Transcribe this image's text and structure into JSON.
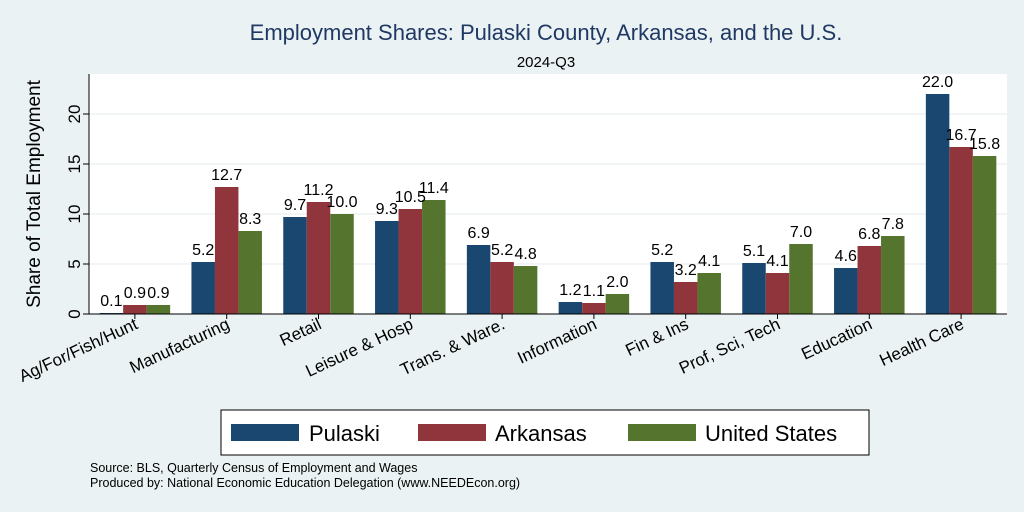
{
  "colors": {
    "background": "#eaf2f3",
    "plot_background": "#ffffff",
    "Pulaski": "#1a476f",
    "Arkansas": "#90353b",
    "United States": "#55752f"
  },
  "chart_data": {
    "type": "bar",
    "title": "Employment Shares: Pulaski County, Arkansas, and the U.S.",
    "subtitle": "2024-Q3",
    "xlabel": "",
    "ylabel": "Share of Total Employment",
    "ylim": [
      0,
      24
    ],
    "yticks": [
      "0",
      "5",
      "10",
      "15",
      "20"
    ],
    "grid": true,
    "legend_position": "bottom",
    "categories": [
      "Ag/For/Fish/Hunt",
      "Manufacturing",
      "Retail",
      "Leisure & Hosp",
      "Trans. & Ware.",
      "Information",
      "Fin & Ins",
      "Prof, Sci, Tech",
      "Education",
      "Health Care"
    ],
    "series": [
      {
        "name": "Pulaski",
        "values": [
          0.1,
          5.2,
          9.7,
          9.3,
          6.9,
          1.2,
          5.2,
          5.1,
          4.6,
          22.0
        ],
        "labels": [
          "0.1",
          "5.2",
          "9.7",
          "9.3",
          "6.9",
          "1.2",
          "5.2",
          "5.1",
          "4.6",
          "22.0"
        ]
      },
      {
        "name": "Arkansas",
        "values": [
          0.9,
          12.7,
          11.2,
          10.5,
          5.2,
          1.1,
          3.2,
          4.1,
          6.8,
          16.7
        ],
        "labels": [
          "0.9",
          "12.7",
          "11.2",
          "10.5",
          "5.2",
          "1.1",
          "3.2",
          "4.1",
          "6.8",
          "16.7"
        ]
      },
      {
        "name": "United States",
        "values": [
          0.9,
          8.3,
          10.0,
          11.4,
          4.8,
          2.0,
          4.1,
          7.0,
          7.8,
          15.8
        ],
        "labels": [
          "0.9",
          "8.3",
          "10.0",
          "11.4",
          "4.8",
          "2.0",
          "4.1",
          "7.0",
          "7.8",
          "15.8"
        ]
      }
    ]
  },
  "source": {
    "line1": "Source: BLS, Quarterly Census of Employment and Wages",
    "line2": "Produced by: National Economic Education Delegation (www.NEEDEcon.org)"
  }
}
